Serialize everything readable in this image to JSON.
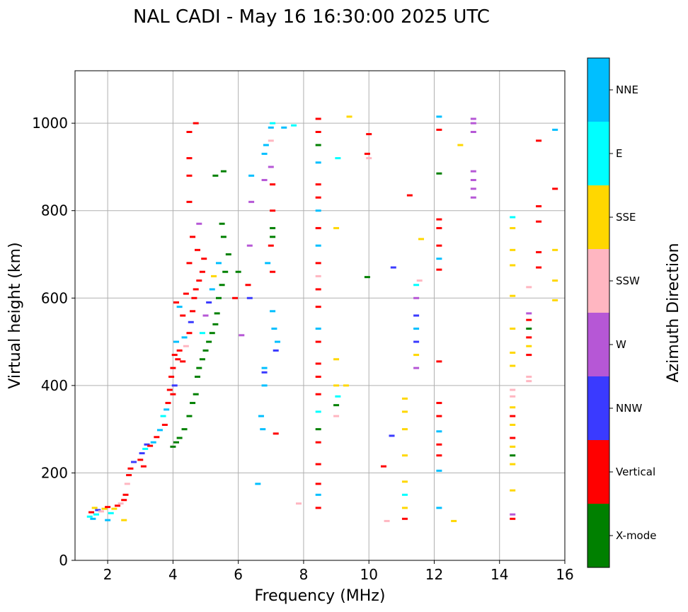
{
  "chart_data": {
    "type": "scatter",
    "title": "NAL CADI - May 16 16:30:00 2025 UTC",
    "xlabel": "Frequency (MHz)",
    "ylabel": "Virtual height (km)",
    "xlim": [
      1,
      16
    ],
    "ylim": [
      0,
      1120
    ],
    "xticks": [
      2,
      4,
      6,
      8,
      10,
      12,
      14,
      16
    ],
    "yticks": [
      0,
      200,
      400,
      600,
      800,
      1000
    ],
    "grid": true,
    "colorbar": {
      "label": "Azimuth Direction",
      "categories": [
        {
          "name": "X-mode",
          "color": "#008000"
        },
        {
          "name": "Vertical",
          "color": "#ff0000"
        },
        {
          "name": "NNW",
          "color": "#3a3aff"
        },
        {
          "name": "W",
          "color": "#b657d6"
        },
        {
          "name": "SSW",
          "color": "#ffb6c1"
        },
        {
          "name": "SSE",
          "color": "#ffd700"
        },
        {
          "name": "E",
          "color": "#00ffff"
        },
        {
          "name": "NNE",
          "color": "#00bfff"
        }
      ]
    },
    "points": [
      [
        1.45,
        100,
        "E"
      ],
      [
        1.5,
        110,
        "Vertical"
      ],
      [
        1.55,
        95,
        "NNE"
      ],
      [
        1.6,
        120,
        "SSE"
      ],
      [
        1.65,
        105,
        "E"
      ],
      [
        1.7,
        115,
        "NNW"
      ],
      [
        1.8,
        112,
        "SSW"
      ],
      [
        1.9,
        118,
        "SSE"
      ],
      [
        2.0,
        122,
        "Vertical"
      ],
      [
        2.1,
        108,
        "E"
      ],
      [
        2.2,
        118,
        "SSE"
      ],
      [
        2.3,
        125,
        "Vertical"
      ],
      [
        2.4,
        130,
        "SSW"
      ],
      [
        2.5,
        138,
        "Vertical"
      ],
      [
        2.0,
        92,
        "NNE"
      ],
      [
        2.5,
        92,
        "SSE"
      ],
      [
        2.55,
        150,
        "Vertical"
      ],
      [
        2.6,
        175,
        "SSW"
      ],
      [
        2.65,
        195,
        "Vertical"
      ],
      [
        2.7,
        210,
        "Vertical"
      ],
      [
        2.8,
        225,
        "NNW"
      ],
      [
        3.0,
        230,
        "Vertical"
      ],
      [
        3.05,
        245,
        "NNW"
      ],
      [
        3.1,
        215,
        "Vertical"
      ],
      [
        3.15,
        255,
        "E"
      ],
      [
        3.2,
        265,
        "NNW"
      ],
      [
        3.3,
        262,
        "Vertical"
      ],
      [
        3.4,
        270,
        "NNE"
      ],
      [
        3.5,
        282,
        "Vertical"
      ],
      [
        3.6,
        298,
        "NNE"
      ],
      [
        3.7,
        330,
        "E"
      ],
      [
        3.75,
        310,
        "Vertical"
      ],
      [
        3.8,
        345,
        "NNE"
      ],
      [
        3.85,
        360,
        "Vertical"
      ],
      [
        3.9,
        390,
        "Vertical"
      ],
      [
        3.95,
        420,
        "Vertical"
      ],
      [
        4.0,
        440,
        "Vertical"
      ],
      [
        4.05,
        470,
        "Vertical"
      ],
      [
        4.1,
        500,
        "NNE"
      ],
      [
        4.15,
        460,
        "Vertical"
      ],
      [
        4.2,
        480,
        "Vertical"
      ],
      [
        4.3,
        455,
        "Vertical"
      ],
      [
        4.35,
        510,
        "NNE"
      ],
      [
        4.4,
        490,
        "SSW"
      ],
      [
        4.5,
        520,
        "Vertical"
      ],
      [
        4.55,
        545,
        "NNW"
      ],
      [
        4.6,
        570,
        "Vertical"
      ],
      [
        4.65,
        600,
        "Vertical"
      ],
      [
        4.7,
        620,
        "Vertical"
      ],
      [
        4.8,
        640,
        "Vertical"
      ],
      [
        4.9,
        660,
        "Vertical"
      ],
      [
        4.95,
        690,
        "Vertical"
      ],
      [
        4.6,
        740,
        "Vertical"
      ],
      [
        4.75,
        710,
        "Vertical"
      ],
      [
        4.8,
        770,
        "W"
      ],
      [
        4.5,
        680,
        "Vertical"
      ],
      [
        4.4,
        610,
        "Vertical"
      ],
      [
        4.3,
        560,
        "Vertical"
      ],
      [
        4.2,
        580,
        "NNE"
      ],
      [
        4.1,
        590,
        "Vertical"
      ],
      [
        4.05,
        400,
        "NNW"
      ],
      [
        4.0,
        380,
        "Vertical"
      ],
      [
        4.0,
        260,
        "X-mode"
      ],
      [
        4.1,
        270,
        "X-mode"
      ],
      [
        4.2,
        280,
        "X-mode"
      ],
      [
        4.35,
        300,
        "X-mode"
      ],
      [
        4.5,
        330,
        "X-mode"
      ],
      [
        4.6,
        360,
        "X-mode"
      ],
      [
        4.7,
        380,
        "X-mode"
      ],
      [
        4.75,
        420,
        "X-mode"
      ],
      [
        4.8,
        440,
        "X-mode"
      ],
      [
        4.9,
        460,
        "X-mode"
      ],
      [
        5.0,
        480,
        "X-mode"
      ],
      [
        5.1,
        500,
        "X-mode"
      ],
      [
        5.2,
        520,
        "X-mode"
      ],
      [
        5.3,
        540,
        "X-mode"
      ],
      [
        5.35,
        565,
        "X-mode"
      ],
      [
        5.4,
        600,
        "X-mode"
      ],
      [
        5.5,
        630,
        "X-mode"
      ],
      [
        5.6,
        660,
        "X-mode"
      ],
      [
        5.7,
        700,
        "X-mode"
      ],
      [
        5.55,
        740,
        "X-mode"
      ],
      [
        5.5,
        770,
        "X-mode"
      ],
      [
        5.3,
        880,
        "X-mode"
      ],
      [
        5.55,
        890,
        "X-mode"
      ],
      [
        5.2,
        620,
        "NNE"
      ],
      [
        5.0,
        560,
        "W"
      ],
      [
        5.1,
        590,
        "NNW"
      ],
      [
        4.9,
        520,
        "E"
      ],
      [
        5.25,
        650,
        "SSE"
      ],
      [
        5.4,
        680,
        "NNE"
      ],
      [
        4.5,
        980,
        "Vertical"
      ],
      [
        4.5,
        920,
        "Vertical"
      ],
      [
        4.5,
        880,
        "Vertical"
      ],
      [
        4.5,
        820,
        "Vertical"
      ],
      [
        4.7,
        1000,
        "Vertical"
      ],
      [
        5.9,
        600,
        "Vertical"
      ],
      [
        6.0,
        660,
        "X-mode"
      ],
      [
        6.1,
        515,
        "W"
      ],
      [
        6.35,
        600,
        "NNW"
      ],
      [
        6.35,
        720,
        "W"
      ],
      [
        6.4,
        880,
        "NNE"
      ],
      [
        6.4,
        820,
        "W"
      ],
      [
        6.3,
        630,
        "Vertical"
      ],
      [
        6.6,
        175,
        "NNE"
      ],
      [
        6.7,
        330,
        "NNE"
      ],
      [
        6.75,
        300,
        "NNE"
      ],
      [
        6.8,
        440,
        "NNE"
      ],
      [
        6.8,
        400,
        "NNE"
      ],
      [
        6.8,
        430,
        "NNW"
      ],
      [
        6.9,
        680,
        "NNE"
      ],
      [
        6.8,
        870,
        "W"
      ],
      [
        6.8,
        930,
        "NNE"
      ],
      [
        6.85,
        950,
        "NNE"
      ],
      [
        7.0,
        990,
        "NNE"
      ],
      [
        7.05,
        1000,
        "E"
      ],
      [
        7.0,
        960,
        "SSW"
      ],
      [
        7.0,
        900,
        "W"
      ],
      [
        7.05,
        860,
        "Vertical"
      ],
      [
        7.05,
        800,
        "Vertical"
      ],
      [
        7.05,
        760,
        "X-mode"
      ],
      [
        7.05,
        740,
        "X-mode"
      ],
      [
        7.0,
        720,
        "Vertical"
      ],
      [
        7.05,
        660,
        "Vertical"
      ],
      [
        7.05,
        570,
        "NNE"
      ],
      [
        7.1,
        530,
        "NNE"
      ],
      [
        7.15,
        480,
        "NNW"
      ],
      [
        7.15,
        290,
        "Vertical"
      ],
      [
        7.2,
        500,
        "NNE"
      ],
      [
        7.4,
        990,
        "NNE"
      ],
      [
        7.7,
        995,
        "E"
      ],
      [
        7.85,
        130,
        "SSW"
      ],
      [
        8.45,
        120,
        "Vertical"
      ],
      [
        8.45,
        150,
        "NNE"
      ],
      [
        8.45,
        175,
        "Vertical"
      ],
      [
        8.45,
        220,
        "Vertical"
      ],
      [
        8.45,
        270,
        "Vertical"
      ],
      [
        8.45,
        300,
        "X-mode"
      ],
      [
        8.45,
        340,
        "E"
      ],
      [
        8.45,
        380,
        "Vertical"
      ],
      [
        8.45,
        420,
        "Vertical"
      ],
      [
        8.45,
        450,
        "Vertical"
      ],
      [
        8.45,
        500,
        "Vertical"
      ],
      [
        8.45,
        530,
        "NNE"
      ],
      [
        8.45,
        580,
        "Vertical"
      ],
      [
        8.45,
        620,
        "Vertical"
      ],
      [
        8.45,
        650,
        "SSW"
      ],
      [
        8.45,
        680,
        "Vertical"
      ],
      [
        8.45,
        720,
        "NNE"
      ],
      [
        8.45,
        760,
        "Vertical"
      ],
      [
        8.45,
        800,
        "NNE"
      ],
      [
        8.45,
        830,
        "Vertical"
      ],
      [
        8.45,
        860,
        "Vertical"
      ],
      [
        8.45,
        910,
        "NNE"
      ],
      [
        8.45,
        950,
        "X-mode"
      ],
      [
        8.45,
        980,
        "Vertical"
      ],
      [
        8.45,
        1010,
        "Vertical"
      ],
      [
        9.0,
        330,
        "SSW"
      ],
      [
        9.0,
        355,
        "X-mode"
      ],
      [
        9.05,
        375,
        "E"
      ],
      [
        9.0,
        400,
        "SSE"
      ],
      [
        9.3,
        400,
        "SSE"
      ],
      [
        9.0,
        460,
        "SSE"
      ],
      [
        9.0,
        760,
        "SSE"
      ],
      [
        9.05,
        920,
        "E"
      ],
      [
        9.4,
        1015,
        "SSE"
      ],
      [
        9.95,
        648,
        "X-mode"
      ],
      [
        9.95,
        930,
        "Vertical"
      ],
      [
        10.0,
        920,
        "SSW"
      ],
      [
        10.0,
        975,
        "Vertical"
      ],
      [
        10.45,
        215,
        "Vertical"
      ],
      [
        10.55,
        90,
        "SSW"
      ],
      [
        10.7,
        285,
        "NNW"
      ],
      [
        10.75,
        670,
        "NNW"
      ],
      [
        11.1,
        95,
        "Vertical"
      ],
      [
        11.1,
        120,
        "SSE"
      ],
      [
        11.1,
        150,
        "E"
      ],
      [
        11.1,
        180,
        "SSE"
      ],
      [
        11.1,
        240,
        "SSE"
      ],
      [
        11.1,
        300,
        "SSE"
      ],
      [
        11.1,
        340,
        "SSE"
      ],
      [
        11.1,
        370,
        "SSE"
      ],
      [
        11.25,
        835,
        "Vertical"
      ],
      [
        11.45,
        440,
        "W"
      ],
      [
        11.45,
        470,
        "SSE"
      ],
      [
        11.45,
        500,
        "NNW"
      ],
      [
        11.45,
        530,
        "NNE"
      ],
      [
        11.45,
        560,
        "NNW"
      ],
      [
        11.45,
        600,
        "W"
      ],
      [
        11.45,
        630,
        "E"
      ],
      [
        11.55,
        640,
        "SSW"
      ],
      [
        11.6,
        735,
        "SSE"
      ],
      [
        12.15,
        120,
        "NNE"
      ],
      [
        12.15,
        205,
        "NNE"
      ],
      [
        12.15,
        240,
        "Vertical"
      ],
      [
        12.15,
        265,
        "Vertical"
      ],
      [
        12.15,
        295,
        "NNE"
      ],
      [
        12.15,
        330,
        "Vertical"
      ],
      [
        12.15,
        360,
        "Vertical"
      ],
      [
        12.15,
        455,
        "Vertical"
      ],
      [
        12.15,
        665,
        "Vertical"
      ],
      [
        12.15,
        690,
        "NNE"
      ],
      [
        12.15,
        720,
        "Vertical"
      ],
      [
        12.15,
        760,
        "Vertical"
      ],
      [
        12.15,
        780,
        "Vertical"
      ],
      [
        12.15,
        885,
        "X-mode"
      ],
      [
        12.15,
        985,
        "Vertical"
      ],
      [
        12.15,
        1015,
        "NNE"
      ],
      [
        12.6,
        90,
        "SSE"
      ],
      [
        12.8,
        950,
        "SSE"
      ],
      [
        13.2,
        830,
        "W"
      ],
      [
        13.2,
        850,
        "W"
      ],
      [
        13.2,
        870,
        "W"
      ],
      [
        13.2,
        890,
        "W"
      ],
      [
        13.2,
        980,
        "W"
      ],
      [
        13.2,
        1000,
        "W"
      ],
      [
        13.2,
        1010,
        "W"
      ],
      [
        14.4,
        95,
        "Vertical"
      ],
      [
        14.4,
        105,
        "W"
      ],
      [
        14.4,
        160,
        "SSE"
      ],
      [
        14.4,
        220,
        "SSE"
      ],
      [
        14.4,
        240,
        "X-mode"
      ],
      [
        14.4,
        260,
        "SSE"
      ],
      [
        14.4,
        280,
        "Vertical"
      ],
      [
        14.4,
        310,
        "SSE"
      ],
      [
        14.4,
        330,
        "Vertical"
      ],
      [
        14.4,
        350,
        "SSE"
      ],
      [
        14.4,
        375,
        "SSW"
      ],
      [
        14.4,
        390,
        "SSW"
      ],
      [
        14.4,
        445,
        "SSE"
      ],
      [
        14.4,
        475,
        "SSE"
      ],
      [
        14.4,
        530,
        "SSE"
      ],
      [
        14.4,
        605,
        "SSE"
      ],
      [
        14.4,
        675,
        "SSE"
      ],
      [
        14.4,
        710,
        "SSE"
      ],
      [
        14.4,
        760,
        "SSE"
      ],
      [
        14.4,
        785,
        "E"
      ],
      [
        14.9,
        410,
        "SSW"
      ],
      [
        14.9,
        420,
        "SSW"
      ],
      [
        14.9,
        470,
        "Vertical"
      ],
      [
        14.9,
        490,
        "SSE"
      ],
      [
        14.9,
        510,
        "Vertical"
      ],
      [
        14.9,
        530,
        "X-mode"
      ],
      [
        14.9,
        550,
        "Vertical"
      ],
      [
        14.9,
        565,
        "W"
      ],
      [
        14.9,
        625,
        "SSW"
      ],
      [
        15.2,
        670,
        "Vertical"
      ],
      [
        15.2,
        705,
        "Vertical"
      ],
      [
        15.2,
        775,
        "Vertical"
      ],
      [
        15.2,
        810,
        "Vertical"
      ],
      [
        15.2,
        960,
        "Vertical"
      ],
      [
        15.7,
        595,
        "SSE"
      ],
      [
        15.7,
        640,
        "SSE"
      ],
      [
        15.7,
        710,
        "SSE"
      ],
      [
        15.7,
        850,
        "Vertical"
      ],
      [
        15.7,
        985,
        "NNE"
      ]
    ]
  }
}
